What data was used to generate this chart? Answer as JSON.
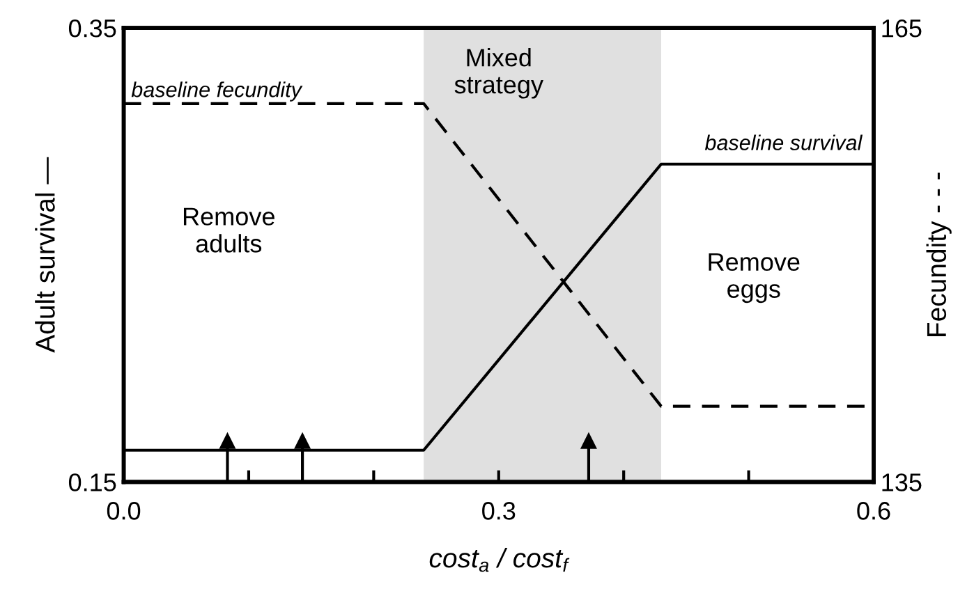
{
  "chart_data": {
    "type": "line",
    "xlabel": "cost$_{a}$ / cost$_{f}$",
    "ylabel": "Adult survival —",
    "y2label": "Fecundity - - -",
    "x": [
      0.0,
      0.24,
      0.43,
      0.6
    ],
    "series": [
      {
        "color": "#000000",
        "line_style": "solid",
        "values": [
          0.164,
          0.164,
          0.29,
          0.29
        ]
      },
      {
        "color": "#000000",
        "line_style": "dashed",
        "axis": "y2",
        "values": [
          160,
          160,
          140,
          140
        ]
      },
      {
        "type": "lollipop",
        "color": "#000000",
        "marker": "triangle",
        "x": [
          0.083,
          0.143,
          0.372
        ],
        "values": [
          0.168,
          0.168,
          0.168
        ]
      }
    ],
    "xlim": [
      0.0,
      0.6
    ],
    "xticks": [
      {
        "value": 0.0,
        "label": "0.0"
      },
      {
        "value": 0.1,
        "label": null
      },
      {
        "value": 0.2,
        "label": null
      },
      0.3,
      {
        "value": 0.4,
        "label": null
      },
      {
        "value": 0.5,
        "label": null
      },
      0.6
    ],
    "ylim": [
      0.15,
      0.35
    ],
    "yticks": [
      0.15,
      0.35
    ],
    "y2lim": [
      135,
      165
    ],
    "y2ticks": [
      135,
      165
    ],
    "bands": [
      {
        "axis": "x",
        "from": 0.24,
        "to": 0.43,
        "color": "#e0e0e0"
      }
    ],
    "annotations": [
      "baseline fecundity",
      {
        "text": "baseline survival",
        "x": 0.6,
        "y": 0.29
      },
      "Remove\nadults",
      "Mixed\nstrategy",
      "Remove\neggs"
    ],
    "grid": false,
    "legend": false,
    "marker": "none"
  }
}
